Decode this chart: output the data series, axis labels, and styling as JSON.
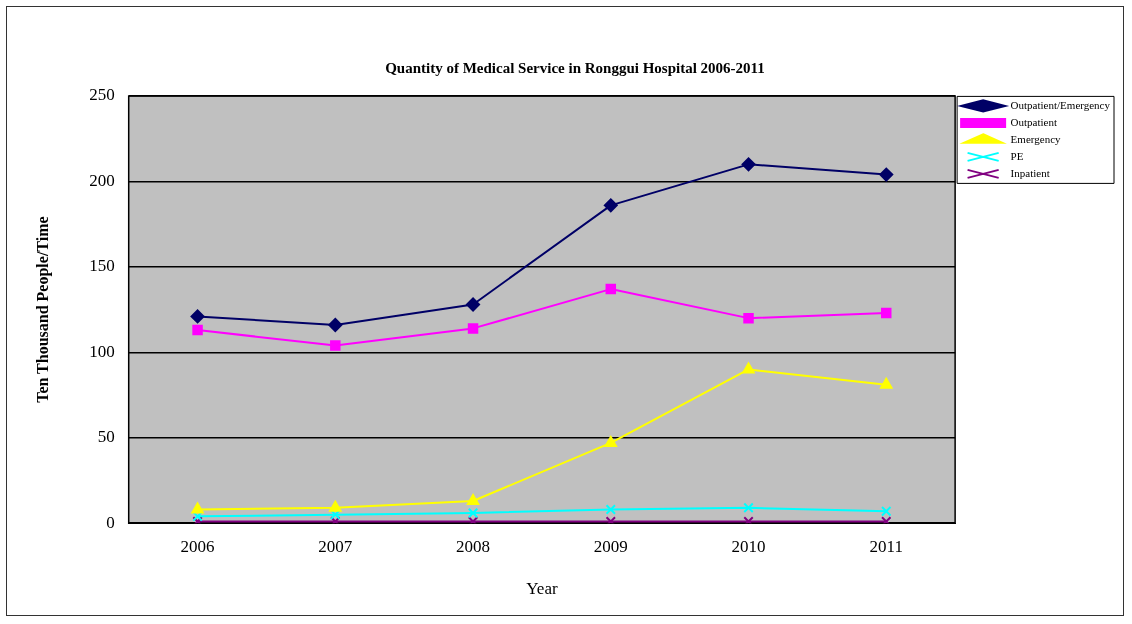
{
  "chart_data": {
    "type": "line",
    "title": "Quantity of Medical Service in Ronggui Hospital 2006-2011",
    "xlabel": "Year",
    "ylabel": "Ten Thousand People/Time",
    "categories": [
      "2006",
      "2007",
      "2008",
      "2009",
      "2010",
      "2011"
    ],
    "series": [
      {
        "name": "Outpatient/Emergency",
        "color": "#000066",
        "marker": "diamond",
        "values": [
          121,
          116,
          128,
          186,
          210,
          204
        ]
      },
      {
        "name": "Outpatient",
        "color": "#ff00ff",
        "marker": "square",
        "values": [
          113,
          104,
          114,
          137,
          120,
          123
        ]
      },
      {
        "name": "Emergency",
        "color": "#ffff00",
        "marker": "triangle",
        "values": [
          8,
          9,
          13,
          47,
          90,
          81
        ]
      },
      {
        "name": "PE",
        "color": "#00ffff",
        "marker": "cross",
        "values": [
          4,
          5,
          6,
          8,
          9,
          7
        ]
      },
      {
        "name": "Inpatient",
        "color": "#800080",
        "marker": "cross",
        "values": [
          1,
          1,
          1,
          1,
          1,
          1
        ]
      }
    ],
    "ylim": [
      0,
      250
    ],
    "yticks": [
      0,
      50,
      100,
      150,
      200,
      250
    ],
    "grid": "y",
    "legend": "top right"
  }
}
